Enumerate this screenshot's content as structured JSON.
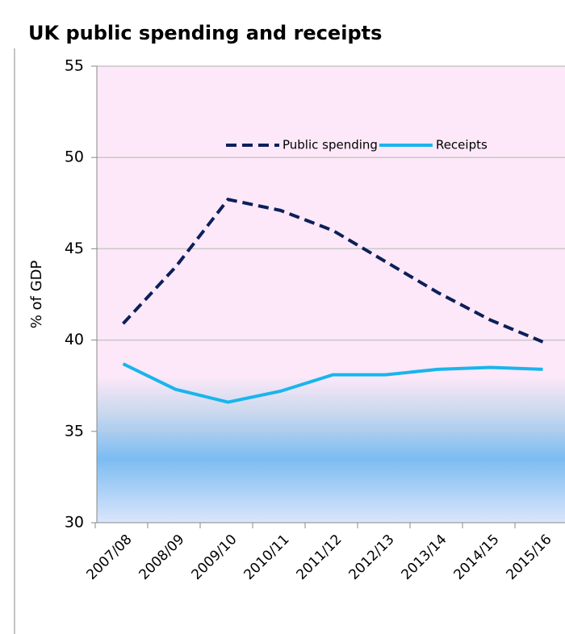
{
  "chart_data": {
    "type": "line",
    "title": "UK public spending and receipts",
    "y_label": "% of GDP",
    "categories": [
      "2007/08",
      "2008/09",
      "2009/10",
      "2010/11",
      "2011/12",
      "2012/13",
      "2013/14",
      "2014/15",
      "2015/16"
    ],
    "series": [
      {
        "name": "Public spending",
        "color": "#0c1f5a",
        "dashed": true,
        "values": [
          40.9,
          44.0,
          47.7,
          47.1,
          46.0,
          44.3,
          42.6,
          41.1,
          39.9
        ]
      },
      {
        "name": "Receipts",
        "color": "#19b5ec",
        "dashed": false,
        "values": [
          38.7,
          37.3,
          36.6,
          37.2,
          38.1,
          38.1,
          38.4,
          38.5,
          38.4
        ]
      }
    ],
    "ylim": [
      30,
      55
    ],
    "yticks": [
      30,
      35,
      40,
      45,
      50,
      55
    ],
    "grid": true,
    "legend": "upper right"
  }
}
